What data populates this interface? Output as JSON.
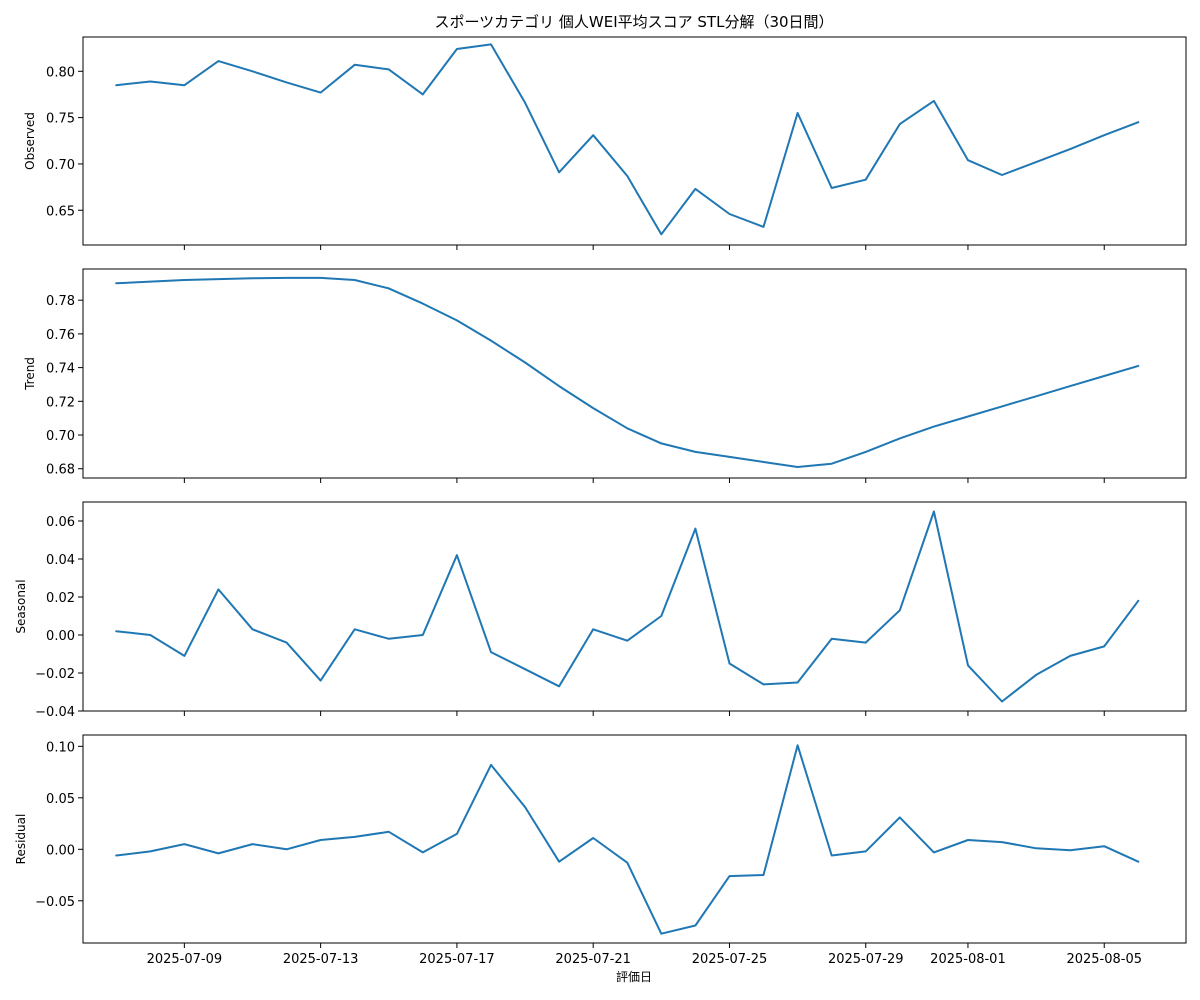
{
  "chart_data": {
    "type": "line",
    "title": "スポーツカテゴリ 個人WEI平均スコア STL分解（30日間）",
    "xlabel": "評価日",
    "line_color": "#1f77b4",
    "x": [
      "2025-07-07",
      "2025-07-08",
      "2025-07-09",
      "2025-07-10",
      "2025-07-11",
      "2025-07-12",
      "2025-07-13",
      "2025-07-14",
      "2025-07-15",
      "2025-07-16",
      "2025-07-17",
      "2025-07-18",
      "2025-07-19",
      "2025-07-20",
      "2025-07-21",
      "2025-07-22",
      "2025-07-23",
      "2025-07-24",
      "2025-07-25",
      "2025-07-26",
      "2025-07-27",
      "2025-07-28",
      "2025-07-29",
      "2025-07-30",
      "2025-07-31",
      "2025-08-01",
      "2025-08-02",
      "2025-08-03",
      "2025-08-04",
      "2025-08-05",
      "2025-08-06"
    ],
    "x_range": [
      "2025-07-06T00:36",
      "2025-08-07T09:36"
    ],
    "x_ticks": [
      "2025-07-09",
      "2025-07-13",
      "2025-07-17",
      "2025-07-21",
      "2025-07-25",
      "2025-07-29",
      "2025-08-01",
      "2025-08-05"
    ],
    "panels": [
      {
        "name": "Observed",
        "ylabel": "Observed",
        "ylim": [
          0.6125,
          0.837
        ],
        "yticks": [
          0.65,
          0.7,
          0.75,
          0.8
        ],
        "ytick_labels": [
          "0.65",
          "0.70",
          "0.75",
          "0.80"
        ],
        "values": [
          0.785,
          0.789,
          0.785,
          0.811,
          0.8,
          0.788,
          0.777,
          0.807,
          0.802,
          0.775,
          0.824,
          0.829,
          0.766,
          0.691,
          0.731,
          0.687,
          0.624,
          0.673,
          0.646,
          0.632,
          0.755,
          0.674,
          0.683,
          0.743,
          0.768,
          0.704,
          0.688,
          0.702,
          0.716,
          0.731,
          0.745
        ]
      },
      {
        "name": "Trend",
        "ylabel": "Trend",
        "ylim": [
          0.6745,
          0.7985
        ],
        "yticks": [
          0.68,
          0.7,
          0.72,
          0.74,
          0.76,
          0.78
        ],
        "ytick_labels": [
          "0.68",
          "0.70",
          "0.72",
          "0.74",
          "0.76",
          "0.78"
        ],
        "values": [
          0.79,
          0.791,
          0.792,
          0.7925,
          0.793,
          0.7932,
          0.7932,
          0.792,
          0.787,
          0.778,
          0.768,
          0.756,
          0.743,
          0.729,
          0.716,
          0.704,
          0.695,
          0.69,
          0.687,
          0.684,
          0.681,
          0.683,
          0.69,
          0.698,
          0.705,
          0.711,
          0.717,
          0.723,
          0.729,
          0.735,
          0.741
        ]
      },
      {
        "name": "Seasonal",
        "ylabel": "Seasonal",
        "ylim": [
          -0.04,
          0.07
        ],
        "yticks": [
          -0.04,
          -0.02,
          0.0,
          0.02,
          0.04,
          0.06
        ],
        "ytick_labels": [
          "−0.04",
          "−0.02",
          "0.00",
          "0.02",
          "0.04",
          "0.06"
        ],
        "values": [
          0.002,
          0.0,
          -0.011,
          0.024,
          0.003,
          -0.004,
          -0.024,
          0.003,
          -0.002,
          0.0,
          0.042,
          -0.009,
          -0.018,
          -0.027,
          0.003,
          -0.003,
          0.01,
          0.056,
          -0.015,
          -0.026,
          -0.025,
          -0.002,
          -0.004,
          0.013,
          0.065,
          -0.016,
          -0.035,
          -0.021,
          -0.011,
          -0.006,
          0.018
        ]
      },
      {
        "name": "Residual",
        "ylabel": "Residual",
        "ylim": [
          -0.091,
          0.111
        ],
        "yticks": [
          -0.05,
          0.0,
          0.05,
          0.1
        ],
        "ytick_labels": [
          "−0.05",
          "0.00",
          "0.05",
          "0.10"
        ],
        "values": [
          -0.006,
          -0.002,
          0.005,
          -0.004,
          0.005,
          0.0,
          0.009,
          0.012,
          0.017,
          -0.003,
          0.015,
          0.082,
          0.041,
          -0.012,
          0.011,
          -0.013,
          -0.082,
          -0.074,
          -0.026,
          -0.025,
          0.101,
          -0.006,
          -0.002,
          0.031,
          -0.003,
          0.009,
          0.007,
          0.001,
          -0.001,
          0.003,
          -0.012
        ]
      }
    ]
  }
}
